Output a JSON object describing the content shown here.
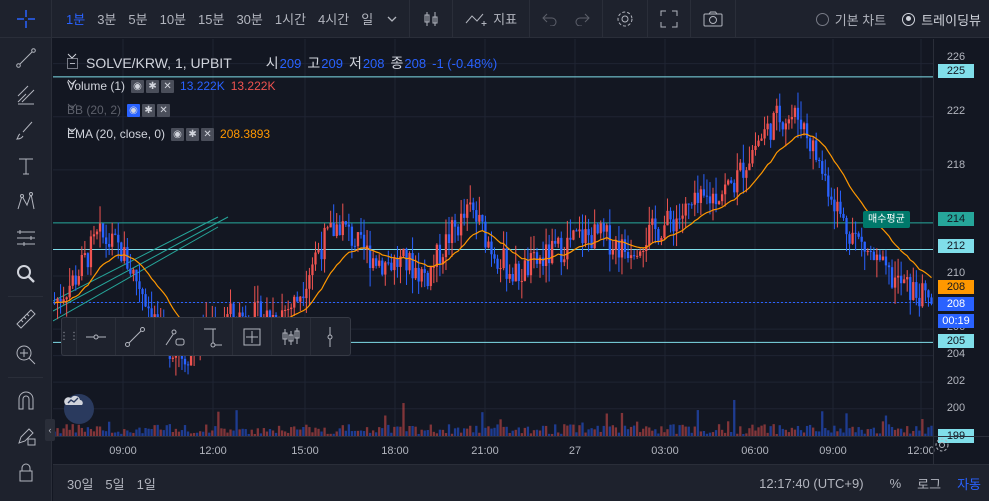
{
  "toolbar": {
    "intervals": [
      "1분",
      "3분",
      "5분",
      "10분",
      "15분",
      "30분",
      "1시간",
      "4시간",
      "일"
    ],
    "active_interval": 0,
    "indicators_label": "지표",
    "chart_types": [
      {
        "label": "기본 차트",
        "selected": false
      },
      {
        "label": "트레이딩뷰",
        "selected": true
      }
    ]
  },
  "symbol": {
    "title": "SOLVE/KRW, 1, UPBIT",
    "open_label": "시",
    "open": "209",
    "high_label": "고",
    "high": "209",
    "low_label": "저",
    "low": "208",
    "close_label": "종",
    "close": "208",
    "change": "-1 (-0.48%)"
  },
  "studies": {
    "volume": {
      "name": "Volume (1)",
      "v1": "13.222K",
      "v2": "13.222K"
    },
    "bb": {
      "name": "BB (20, 2)"
    },
    "ema": {
      "name": "EMA (20, close, 0)",
      "value": "208.3893"
    }
  },
  "price_axis": {
    "ticks": [
      "226",
      "225",
      "222",
      "218",
      "214",
      "212",
      "210",
      "208",
      "208",
      "206",
      "205",
      "204",
      "202",
      "200",
      "199"
    ],
    "last_price": "208",
    "countdown": "00:19",
    "avg_buy_label": "매수평균"
  },
  "time_axis": {
    "labels": [
      "09:00",
      "12:00",
      "15:00",
      "18:00",
      "21:00",
      "27",
      "03:00",
      "06:00",
      "09:00",
      "12:00"
    ]
  },
  "bottom": {
    "ranges": [
      "30일",
      "5일",
      "1일"
    ],
    "clock": "12:17:40 (UTC+9)",
    "percent": "%",
    "log": "로그",
    "auto": "자동"
  },
  "colors": {
    "up": "#ef5350",
    "down": "#2962ff",
    "ema": "#ff9800",
    "hline": "#80deea",
    "avg_line": "#26a69a"
  },
  "chart_data": {
    "type": "candlestick",
    "ylim": [
      199,
      226.5
    ],
    "y_ticks": [
      200,
      202,
      204,
      206,
      208,
      210,
      212,
      214,
      218,
      222,
      226
    ],
    "horizontal_lines": [
      225,
      212,
      205
    ],
    "avg_buy_price": 214,
    "last_price": 208,
    "x": [
      "09:00",
      "12:00",
      "15:00",
      "18:00",
      "21:00",
      "27",
      "03:00",
      "06:00",
      "09:00",
      "12:00"
    ],
    "close_path": [
      208,
      210,
      213,
      212,
      209,
      205,
      204,
      206,
      207,
      207,
      207,
      208,
      212,
      214,
      212,
      211,
      211,
      210,
      213,
      215,
      212,
      210,
      211,
      212,
      213,
      213,
      212,
      213,
      214,
      215,
      216,
      217,
      220,
      222,
      222,
      218,
      214,
      212,
      210,
      209,
      208
    ]
  }
}
